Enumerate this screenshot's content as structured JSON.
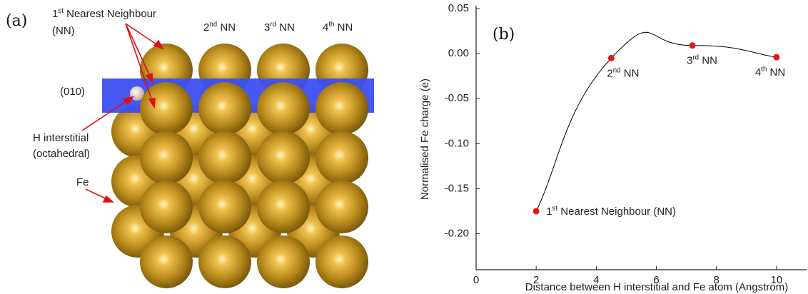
{
  "panel_a": {
    "label": "(a)",
    "nn1_line1": "1st Nearest Neighbour",
    "nn1_line2": "(NN)",
    "nn2": "2nd NN",
    "nn3": "3rd NN",
    "nn4": "4th NN",
    "plane": "(010)",
    "h_line1": "H interstitial",
    "h_line2": "(octahedral)",
    "fe": "Fe"
  },
  "chart_data": {
    "type": "line",
    "panel_label": "(b)",
    "x_label": "Distance between H interstitial and Fe atom (Angstrom)",
    "y_label": "Normalised Fe charge (e)",
    "x": [
      2,
      4.5,
      7.2,
      10
    ],
    "values": [
      -0.175,
      -0.005,
      0.009,
      -0.004
    ],
    "point_labels": [
      "1st Nearest Neighbour (NN)",
      "2nd NN",
      "3rd NN",
      "4th NN"
    ],
    "color": "#000000",
    "marker_color": "#e3161b",
    "xlim": [
      0,
      11
    ],
    "xticks": [
      0,
      2,
      4,
      6,
      8,
      10
    ],
    "ylim": [
      -0.24,
      0.05
    ],
    "yticks": [
      0.05,
      {
        "value": 0,
        "label": "0.00"
      },
      -0.05,
      {
        "value": -0.1,
        "label": "-0.10"
      },
      -0.15,
      {
        "value": -0.2,
        "label": "-0.20"
      }
    ]
  }
}
